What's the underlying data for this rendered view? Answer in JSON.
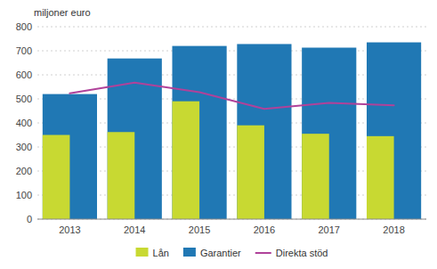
{
  "chart_data": {
    "type": "bar",
    "y_label": "miljoner euro",
    "categories": [
      "2013",
      "2014",
      "2015",
      "2016",
      "2017",
      "2018"
    ],
    "series": [
      {
        "name": "Lån",
        "type": "bar",
        "color": "#c8d932",
        "values": [
          350,
          362,
          490,
          390,
          355,
          345
        ]
      },
      {
        "name": "Garantier",
        "type": "bar",
        "color": "#2078b4",
        "values": [
          520,
          668,
          720,
          728,
          713,
          735
        ]
      },
      {
        "name": "Direkta stöd",
        "type": "line",
        "color": "#b0429a",
        "values": [
          523,
          568,
          528,
          458,
          483,
          473
        ]
      }
    ],
    "ylim": [
      0,
      800
    ],
    "yticks": [
      0,
      100,
      200,
      300,
      400,
      500,
      600,
      700,
      800
    ],
    "grid": true,
    "legend": "bottom"
  }
}
